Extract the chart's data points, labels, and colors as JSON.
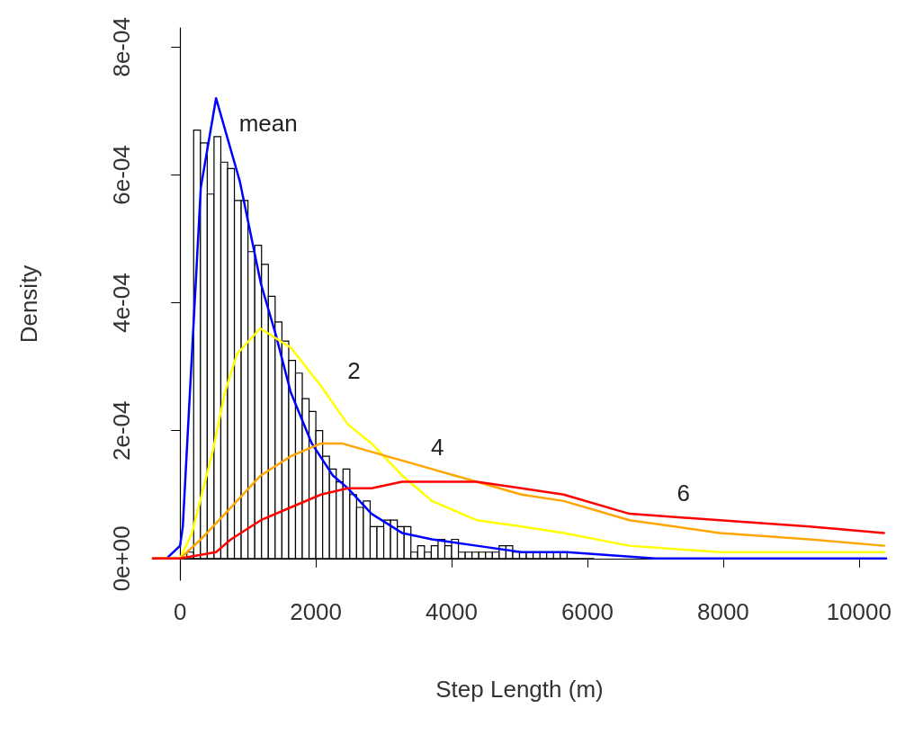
{
  "chart_data": {
    "type": "histogram",
    "xlabel": "Step Length (m)",
    "ylabel": "Density",
    "xlim": [
      -400,
      10400
    ],
    "xticks": [
      0,
      2000,
      4000,
      6000,
      8000,
      10000
    ],
    "ylim": [
      -3.4e-05,
      0.00083
    ],
    "yticks": [
      {
        "value": 0,
        "label": "0e+00"
      },
      {
        "value": 0.0002,
        "label": "2e-04"
      },
      {
        "value": 0.0004,
        "label": "4e-04"
      },
      {
        "value": 0.0006,
        "label": "6e-04"
      },
      {
        "value": 0.0008,
        "label": "8e-04"
      }
    ],
    "grid": false,
    "marker": "none",
    "line_style": "solid",
    "series": [
      {
        "color": "#ffffff",
        "bins": [
          100,
          200,
          300,
          400,
          500,
          600,
          700,
          800,
          900,
          1000,
          1100,
          1200,
          1300,
          1400,
          1500,
          1600,
          1700,
          1800,
          1900,
          2000,
          2100,
          2200,
          2300,
          2400,
          2500,
          2600,
          2700,
          2800,
          2900,
          3000,
          3100,
          3200,
          3300,
          3400,
          3500,
          3600,
          3700,
          3800,
          3900,
          4000,
          4100,
          4200,
          4300,
          4400,
          4500,
          4600,
          4700,
          4800,
          4900,
          5000,
          5100,
          5200,
          5300,
          5400,
          5500,
          5600,
          5700,
          5800,
          5900,
          6000,
          6100
        ],
        "values": [
          1e-05,
          0.00067,
          0.00065,
          0.00057,
          0.00066,
          0.00062,
          0.00061,
          0.00056,
          0.00056,
          0.00048,
          0.00049,
          0.00046,
          0.00041,
          0.00037,
          0.00034,
          0.00031,
          0.00029,
          0.00025,
          0.00023,
          0.0002,
          0.00016,
          0.00014,
          0.00012,
          0.00014,
          0.0001,
          8e-05,
          9e-05,
          5e-05,
          5e-05,
          6e-05,
          6e-05,
          5e-05,
          5e-05,
          1e-05,
          2e-05,
          1e-05,
          2e-05,
          3e-05,
          2e-05,
          3e-05,
          1e-05,
          1e-05,
          1e-05,
          1e-05,
          1e-05,
          1e-05,
          2e-05,
          2e-05,
          1e-05,
          1e-05,
          1e-05,
          0.0,
          1e-05,
          0.0,
          1e-05,
          1e-05,
          0.0,
          0.0,
          0.0,
          0.0
        ]
      },
      {
        "type": "line",
        "name": "mean",
        "color": "#0000ff",
        "x": [
          -400,
          -200,
          0,
          40,
          305,
          530,
          880,
          1190,
          1410,
          1630,
          1940,
          2250,
          2470,
          2820,
          3270,
          3710,
          4370,
          5030,
          5700,
          7000,
          9000,
          10400
        ],
        "values": [
          0,
          0.0,
          2e-05,
          5e-05,
          0.00058,
          0.00072,
          0.00059,
          0.00043,
          0.00035,
          0.00026,
          0.00018,
          0.00013,
          0.00011,
          7e-05,
          4e-05,
          3e-05,
          2e-05,
          1e-05,
          1e-05,
          0.0,
          0.0,
          0.0
        ]
      },
      {
        "type": "line",
        "name": "2",
        "color": "#ffff00",
        "x": [
          -400,
          0,
          176,
          486,
          660,
          840,
          1180,
          1630,
          2075,
          2470,
          2820,
          3270,
          3710,
          4370,
          5030,
          5650,
          6620,
          7950,
          9270,
          10370
        ],
        "values": [
          0,
          0.0,
          4e-05,
          0.00017,
          0.00026,
          0.00032,
          0.00036,
          0.00033,
          0.00027,
          0.00021,
          0.00018,
          0.00013,
          9e-05,
          6e-05,
          5e-05,
          4e-05,
          2e-05,
          1e-05,
          1e-05,
          1e-05
        ]
      },
      {
        "type": "line",
        "name": "4",
        "color": "#ffa500",
        "x": [
          -400,
          0,
          305,
          750,
          1190,
          1630,
          2075,
          2384,
          3046,
          3710,
          4370,
          5030,
          5650,
          6620,
          7950,
          9270,
          10370
        ],
        "values": [
          0,
          0.0,
          3e-05,
          8e-05,
          0.00013,
          0.00016,
          0.00018,
          0.00018,
          0.00016,
          0.00014,
          0.00012,
          0.0001,
          9e-05,
          6e-05,
          4e-05,
          3e-05,
          2e-05
        ]
      },
      {
        "type": "line",
        "name": "6",
        "color": "#ff0000",
        "x": [
          -400,
          0,
          530,
          750,
          1190,
          1630,
          2075,
          2470,
          2820,
          3270,
          3750,
          4370,
          5030,
          5650,
          6620,
          7950,
          9270,
          10370
        ],
        "values": [
          0,
          0.0,
          1e-05,
          3e-05,
          6e-05,
          8e-05,
          0.0001,
          0.00011,
          0.00011,
          0.00012,
          0.00012,
          0.00012,
          0.00011,
          0.0001,
          7e-05,
          6e-05,
          5e-05,
          4e-05
        ]
      }
    ]
  }
}
